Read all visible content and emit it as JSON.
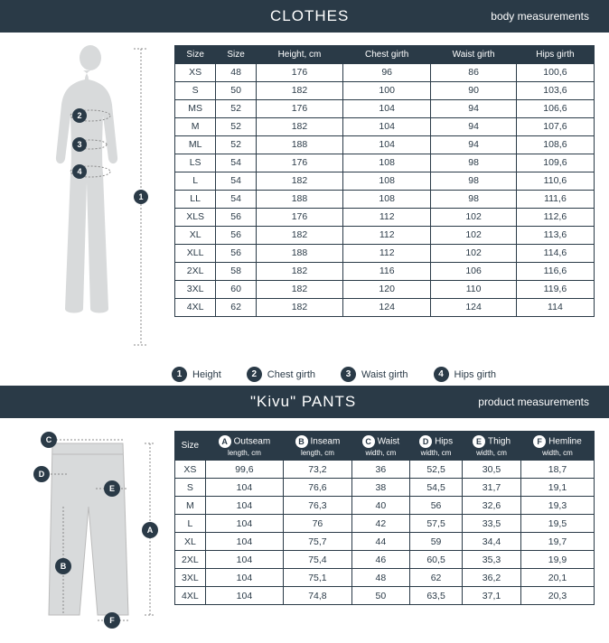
{
  "clothes": {
    "header_title": "CLOTHES",
    "header_sub": "body measurements",
    "columns": [
      "Size",
      "Size",
      "Height, cm",
      "Chest girth",
      "Waist girth",
      "Hips girth"
    ],
    "rows": [
      [
        "XS",
        "48",
        "176",
        "96",
        "86",
        "100,6"
      ],
      [
        "S",
        "50",
        "182",
        "100",
        "90",
        "103,6"
      ],
      [
        "MS",
        "52",
        "176",
        "104",
        "94",
        "106,6"
      ],
      [
        "M",
        "52",
        "182",
        "104",
        "94",
        "107,6"
      ],
      [
        "ML",
        "52",
        "188",
        "104",
        "94",
        "108,6"
      ],
      [
        "LS",
        "54",
        "176",
        "108",
        "98",
        "109,6"
      ],
      [
        "L",
        "54",
        "182",
        "108",
        "98",
        "110,6"
      ],
      [
        "LL",
        "54",
        "188",
        "108",
        "98",
        "111,6"
      ],
      [
        "XLS",
        "56",
        "176",
        "112",
        "102",
        "112,6"
      ],
      [
        "XL",
        "56",
        "182",
        "112",
        "102",
        "113,6"
      ],
      [
        "XLL",
        "56",
        "188",
        "112",
        "102",
        "114,6"
      ],
      [
        "2XL",
        "58",
        "182",
        "116",
        "106",
        "116,6"
      ],
      [
        "3XL",
        "60",
        "182",
        "120",
        "110",
        "119,6"
      ],
      [
        "4XL",
        "62",
        "182",
        "124",
        "124",
        "114"
      ]
    ],
    "legend": [
      {
        "num": "1",
        "label": "Height"
      },
      {
        "num": "2",
        "label": "Chest girth"
      },
      {
        "num": "3",
        "label": "Waist girth"
      },
      {
        "num": "4",
        "label": "Hips girth"
      }
    ]
  },
  "pants": {
    "header_title": "\"Kivu\" PANTS",
    "header_sub": "product measurements",
    "col_letters": [
      "",
      "A",
      "B",
      "C",
      "D",
      "E",
      "F"
    ],
    "col_main": [
      "Size",
      "Outseam",
      "Inseam",
      "Waist",
      "Hips",
      "Thigh",
      "Hemline"
    ],
    "col_sub": [
      "",
      "length, cm",
      "length, cm",
      "width, cm",
      "width, cm",
      "width, cm",
      "width, cm"
    ],
    "rows": [
      [
        "XS",
        "99,6",
        "73,2",
        "36",
        "52,5",
        "30,5",
        "18,7"
      ],
      [
        "S",
        "104",
        "76,6",
        "38",
        "54,5",
        "31,7",
        "19,1"
      ],
      [
        "M",
        "104",
        "76,3",
        "40",
        "56",
        "32,6",
        "19,3"
      ],
      [
        "L",
        "104",
        "76",
        "42",
        "57,5",
        "33,5",
        "19,5"
      ],
      [
        "XL",
        "104",
        "75,7",
        "44",
        "59",
        "34,4",
        "19,7"
      ],
      [
        "2XL",
        "104",
        "75,4",
        "46",
        "60,5",
        "35,3",
        "19,9"
      ],
      [
        "3XL",
        "104",
        "75,1",
        "48",
        "62",
        "36,2",
        "20,1"
      ],
      [
        "4XL",
        "104",
        "74,8",
        "50",
        "63,5",
        "37,1",
        "20,3"
      ]
    ],
    "diagram_labels": [
      "A",
      "B",
      "C",
      "D",
      "E",
      "F"
    ]
  }
}
